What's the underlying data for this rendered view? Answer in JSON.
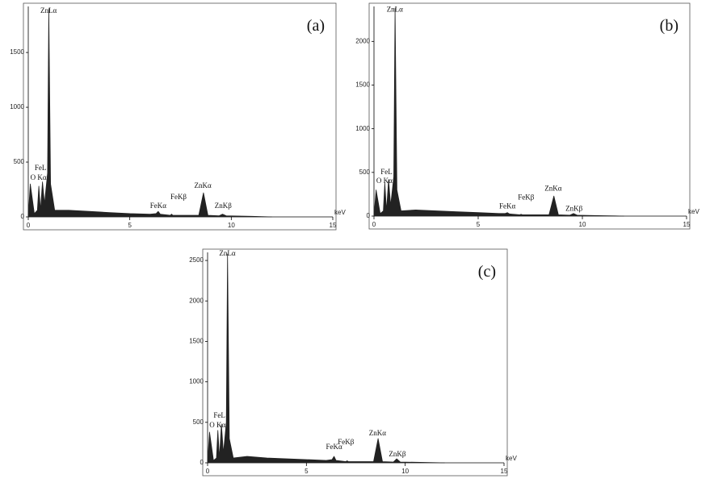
{
  "chart_data": [
    {
      "type": "line",
      "panel_label": "(a)",
      "xlabel": "keV",
      "color": "#222222",
      "x": [
        0,
        0.1,
        0.3,
        0.45,
        0.52,
        0.6,
        0.7,
        0.8,
        0.95,
        1.01,
        1.1,
        1.3,
        2,
        3,
        4,
        5,
        6,
        6.3,
        6.4,
        6.5,
        7.0,
        7.06,
        7.12,
        8.4,
        8.63,
        8.85,
        9.4,
        9.57,
        9.75,
        11,
        12
      ],
      "values": [
        0,
        300,
        30,
        60,
        280,
        60,
        320,
        120,
        400,
        1900,
        300,
        60,
        60,
        50,
        40,
        30,
        25,
        30,
        50,
        25,
        15,
        25,
        15,
        15,
        220,
        15,
        10,
        25,
        10,
        5,
        0
      ],
      "xlim": [
        0,
        15
      ],
      "xticks": [
        0,
        5,
        10,
        15
      ],
      "ylim": [
        0,
        1920
      ],
      "yticks": [
        0,
        500,
        1000,
        1500
      ],
      "annotations": [
        {
          "text": "ZnLα",
          "x": 1.0,
          "y": 1860
        },
        {
          "text": "FeL",
          "x": 0.6,
          "y": 426
        },
        {
          "text": "O Kα",
          "x": 0.5,
          "y": 338
        },
        {
          "text": "FeKα",
          "x": 6.4,
          "y": 80
        },
        {
          "text": "FeKβ",
          "x": 7.4,
          "y": 162
        },
        {
          "text": "ZnKα",
          "x": 8.6,
          "y": 265
        },
        {
          "text": "ZnKβ",
          "x": 9.6,
          "y": 80
        }
      ]
    },
    {
      "type": "line",
      "panel_label": "(b)",
      "xlabel": "keV",
      "color": "#222222",
      "x": [
        0,
        0.1,
        0.3,
        0.45,
        0.52,
        0.6,
        0.7,
        0.8,
        0.95,
        1.01,
        1.1,
        1.3,
        2,
        3,
        4,
        5,
        6,
        6.3,
        6.4,
        6.5,
        7.0,
        7.06,
        7.12,
        8.4,
        8.63,
        8.85,
        9.4,
        9.57,
        9.75,
        11,
        12
      ],
      "values": [
        0,
        300,
        30,
        60,
        380,
        60,
        420,
        120,
        450,
        2380,
        300,
        60,
        70,
        60,
        50,
        40,
        30,
        30,
        40,
        25,
        15,
        20,
        15,
        15,
        230,
        15,
        10,
        30,
        10,
        5,
        0
      ],
      "xlim": [
        0,
        15
      ],
      "xticks": [
        0,
        5,
        10,
        15
      ],
      "ylim": [
        0,
        2400
      ],
      "yticks": [
        0,
        500,
        1000,
        1500,
        2000
      ],
      "annotations": [
        {
          "text": "ZnLα",
          "x": 1.0,
          "y": 2340
        },
        {
          "text": "FeL",
          "x": 0.6,
          "y": 480
        },
        {
          "text": "O Kα",
          "x": 0.5,
          "y": 380
        },
        {
          "text": "FeKα",
          "x": 6.4,
          "y": 90
        },
        {
          "text": "FeKβ",
          "x": 7.3,
          "y": 190
        },
        {
          "text": "ZnKα",
          "x": 8.6,
          "y": 290
        },
        {
          "text": "ZnKβ",
          "x": 9.6,
          "y": 60
        }
      ]
    },
    {
      "type": "line",
      "panel_label": "(c)",
      "xlabel": "keV",
      "color": "#222222",
      "x": [
        0,
        0.1,
        0.3,
        0.45,
        0.52,
        0.6,
        0.7,
        0.8,
        0.95,
        1.01,
        1.1,
        1.3,
        2,
        3,
        4,
        5,
        6,
        6.3,
        6.4,
        6.5,
        7.0,
        7.06,
        7.12,
        8.4,
        8.63,
        8.85,
        9.4,
        9.57,
        9.75,
        11,
        12
      ],
      "values": [
        0,
        380,
        30,
        60,
        400,
        60,
        480,
        120,
        500,
        2580,
        300,
        60,
        80,
        60,
        50,
        40,
        30,
        40,
        80,
        30,
        15,
        25,
        15,
        15,
        300,
        15,
        10,
        50,
        10,
        5,
        0
      ],
      "xlim": [
        0,
        15
      ],
      "xticks": [
        0,
        5,
        10,
        15
      ],
      "ylim": [
        0,
        2600
      ],
      "yticks": [
        0,
        500,
        1000,
        1500,
        2000,
        2500
      ],
      "annotations": [
        {
          "text": "ZnLα",
          "x": 1.0,
          "y": 2560
        },
        {
          "text": "FeL",
          "x": 0.6,
          "y": 560
        },
        {
          "text": "O Kα",
          "x": 0.5,
          "y": 440
        },
        {
          "text": "FeKα",
          "x": 6.4,
          "y": 170
        },
        {
          "text": "FeKβ",
          "x": 7.0,
          "y": 230
        },
        {
          "text": "ZnKα",
          "x": 8.6,
          "y": 340
        },
        {
          "text": "ZnKβ",
          "x": 9.6,
          "y": 80
        }
      ]
    }
  ]
}
